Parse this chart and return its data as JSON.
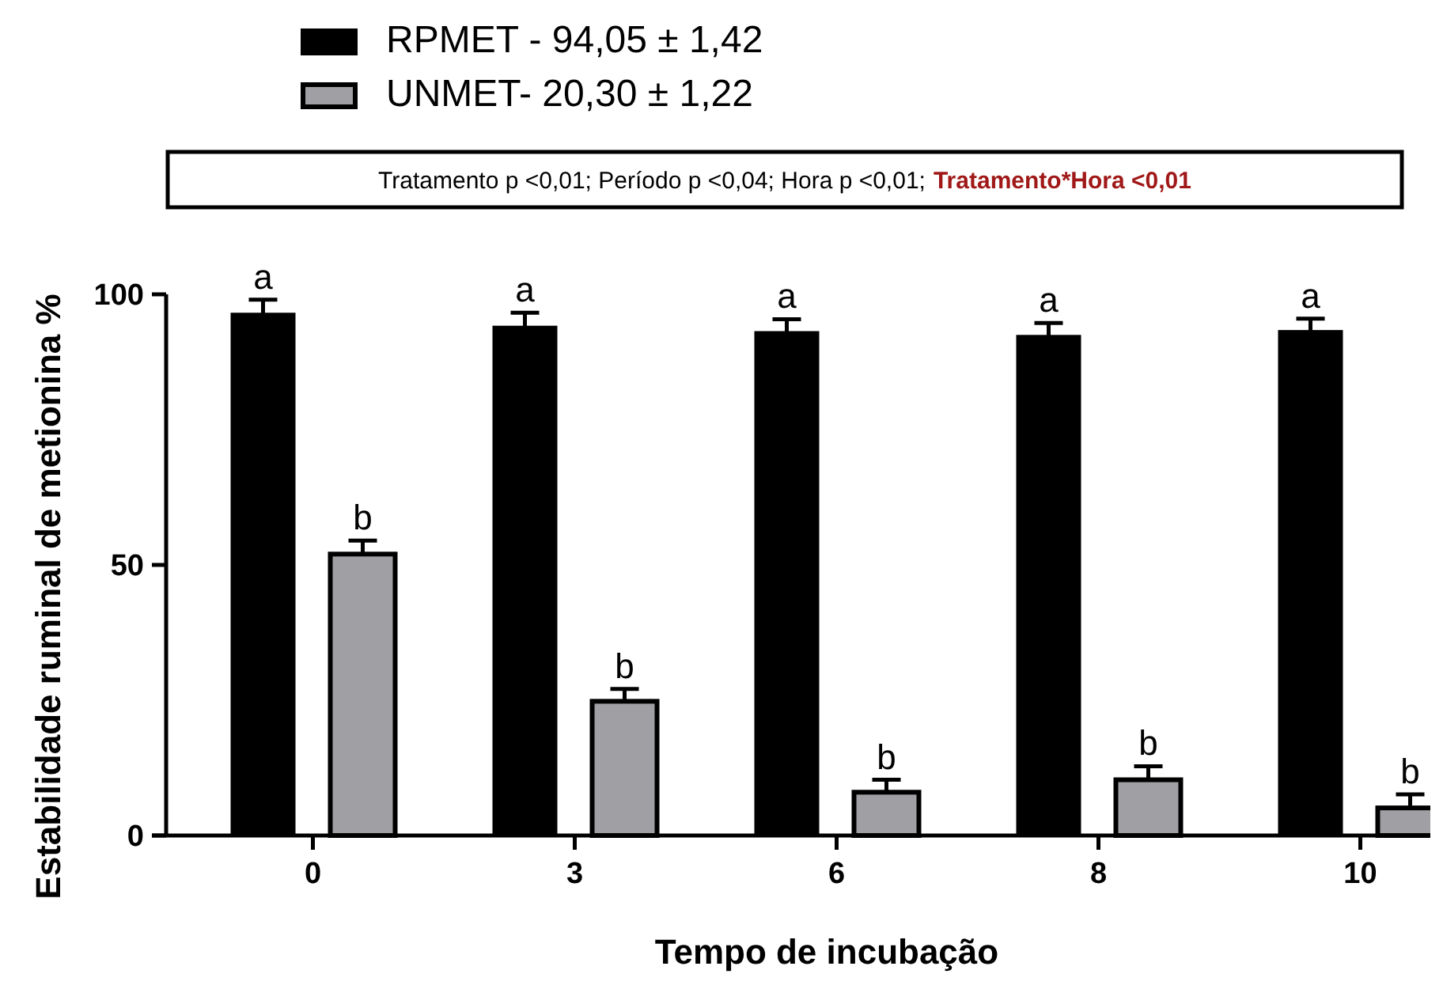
{
  "chart_data": {
    "type": "bar",
    "xlabel": "Tempo de incubação",
    "ylabel": "Estabilidade ruminal de metionina %",
    "categories": [
      "0",
      "3",
      "6",
      "8",
      "10"
    ],
    "series": [
      {
        "name": "RPMET - 94,05 ± 1,42",
        "color": "#000000",
        "values": [
          96.6,
          94.2,
          93.2,
          92.5,
          93.4
        ],
        "errors": [
          2.4,
          2.4,
          2.2,
          2.2,
          2.1
        ]
      },
      {
        "name": "UNMET- 20,30 ± 1,22",
        "color": "#a0a0a4",
        "values": [
          52.0,
          24.8,
          8.0,
          10.3,
          5.1
        ],
        "errors": [
          2.5,
          2.3,
          2.3,
          2.5,
          2.5
        ]
      }
    ],
    "ylim": [
      0,
      100
    ],
    "yticks": [
      0,
      50,
      100
    ],
    "grid": false,
    "legend": "top left",
    "annotations": [
      "Tratamento p <0,01; Período p <0,04; Hora p <0,01;",
      "Tratamento*Hora <0,01",
      "a",
      "b",
      "a",
      "b",
      "a",
      "b",
      "a",
      "b",
      "a",
      "b"
    ]
  }
}
